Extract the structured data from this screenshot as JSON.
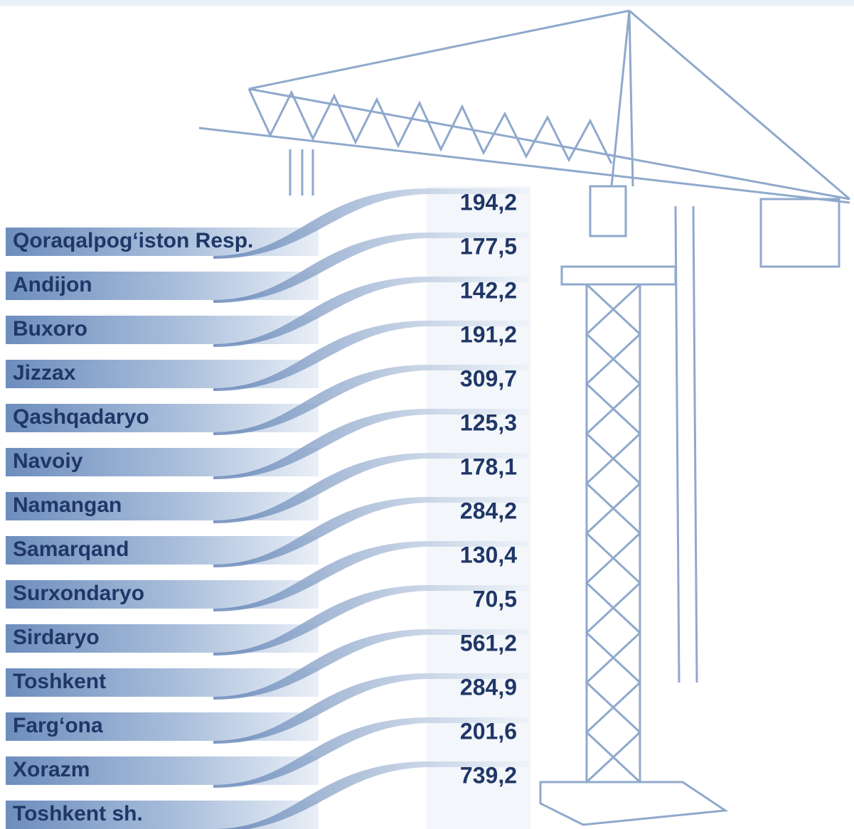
{
  "rows": [
    {
      "label": "Qoraqalpog‘iston Resp.",
      "value": "194,2"
    },
    {
      "label": "Andijon",
      "value": "177,5"
    },
    {
      "label": "Buxoro",
      "value": "142,2"
    },
    {
      "label": "Jizzax",
      "value": "191,2"
    },
    {
      "label": "Qashqadaryo",
      "value": "309,7"
    },
    {
      "label": "Navoiy",
      "value": "125,3"
    },
    {
      "label": "Namangan",
      "value": "178,1"
    },
    {
      "label": "Samarqand",
      "value": "284,2"
    },
    {
      "label": "Surxondaryo",
      "value": "130,4"
    },
    {
      "label": "Sirdaryo",
      "value": "70,5"
    },
    {
      "label": "Toshkent",
      "value": "561,2"
    },
    {
      "label": "Farg‘ona",
      "value": "284,9"
    },
    {
      "label": "Xorazm",
      "value": "201,6"
    },
    {
      "label": "Toshkent sh.",
      "value": "739,2"
    }
  ]
}
